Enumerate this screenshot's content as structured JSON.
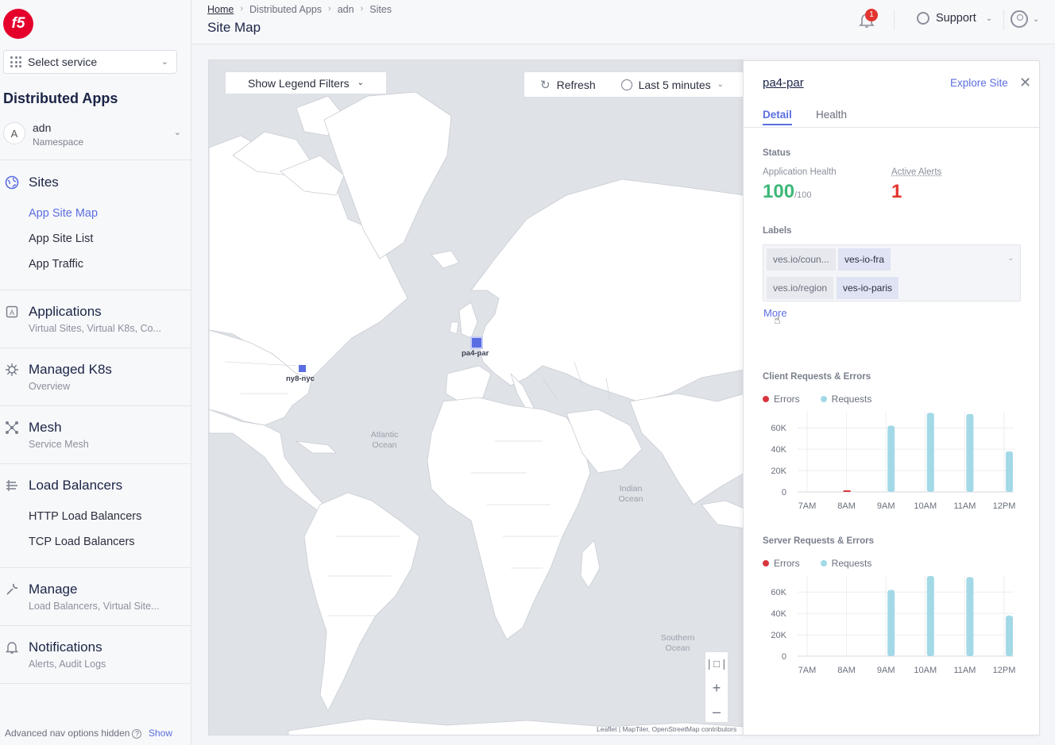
{
  "sidebar": {
    "logo": "f5",
    "select_service": "Select service",
    "app_title": "Distributed Apps",
    "namespace": {
      "initial": "A",
      "name": "adn",
      "label": "Namespace"
    },
    "sections": [
      {
        "icon": "globe-icon",
        "title": "Sites",
        "sub": ""
      },
      {
        "icon": "app-icon",
        "title": "Applications",
        "sub": "Virtual Sites, Virtual K8s, Co..."
      },
      {
        "icon": "k8s-icon",
        "title": "Managed K8s",
        "sub": "Overview"
      },
      {
        "icon": "mesh-icon",
        "title": "Mesh",
        "sub": "Service Mesh"
      },
      {
        "icon": "lb-icon",
        "title": "Load Balancers",
        "sub": ""
      },
      {
        "icon": "wrench-icon",
        "title": "Manage",
        "sub": "Load Balancers, Virtual Site..."
      },
      {
        "icon": "bell-icon",
        "title": "Notifications",
        "sub": "Alerts, Audit Logs"
      }
    ],
    "sites_links": [
      "App Site Map",
      "App Site List",
      "App Traffic"
    ],
    "lb_links": [
      "HTTP Load Balancers",
      "TCP Load Balancers"
    ],
    "advanced": "Advanced nav options hidden",
    "show": "Show"
  },
  "header": {
    "breadcrumbs": [
      "Home",
      "Distributed Apps",
      "adn",
      "Sites"
    ],
    "title": "Site Map",
    "notifications_count": "1",
    "support": "Support"
  },
  "map": {
    "legend_button": "Show Legend Filters",
    "refresh": "Refresh",
    "time_range": "Last 5 minutes",
    "sites": [
      "ny8-nyc",
      "pa4-par"
    ],
    "oceans": {
      "atlantic": "Atlantic\nOcean",
      "indian": "Indian\nOcean",
      "southern": "Southern\nOcean"
    },
    "attribution": "Leaflet | MapTiler, OpenStreetMap contributors"
  },
  "panel": {
    "site_name": "pa4-par",
    "explore": "Explore Site",
    "tabs": [
      "Detail",
      "Health"
    ],
    "status_label": "Status",
    "app_health_label": "Application Health",
    "app_health_value": "100",
    "app_health_max": "/100",
    "active_alerts_label": "Active Alerts",
    "active_alerts_value": "1",
    "labels_label": "Labels",
    "labels": [
      {
        "key": "ves.io/coun...",
        "value": "ves-io-fra"
      },
      {
        "key": "ves.io/region",
        "value": "ves-io-paris"
      }
    ],
    "more": "More",
    "errors_legend": "Errors",
    "requests_legend": "Requests",
    "colors": {
      "errors": "#d9363e",
      "requests": "#a3d9e6"
    }
  },
  "chart_data": [
    {
      "type": "bar",
      "title": "Client Requests & Errors",
      "categories": [
        "7AM",
        "8AM",
        "9AM",
        "10AM",
        "11AM",
        "12PM"
      ],
      "yticks": [
        "60K",
        "40K",
        "20K",
        "0"
      ],
      "ylim": [
        0,
        75000
      ],
      "series": [
        {
          "name": "Errors",
          "values": [
            0,
            600,
            0,
            0,
            0,
            0
          ]
        },
        {
          "name": "Requests",
          "values": [
            0,
            0,
            62000,
            74000,
            73000,
            38000
          ]
        }
      ]
    },
    {
      "type": "bar",
      "title": "Server Requests & Errors",
      "categories": [
        "7AM",
        "8AM",
        "9AM",
        "10AM",
        "11AM",
        "12PM"
      ],
      "yticks": [
        "60K",
        "40K",
        "20K",
        "0"
      ],
      "ylim": [
        0,
        75000
      ],
      "series": [
        {
          "name": "Errors",
          "values": [
            0,
            0,
            0,
            0,
            0,
            0
          ]
        },
        {
          "name": "Requests",
          "values": [
            0,
            0,
            62000,
            75000,
            74000,
            38000
          ]
        }
      ]
    }
  ]
}
